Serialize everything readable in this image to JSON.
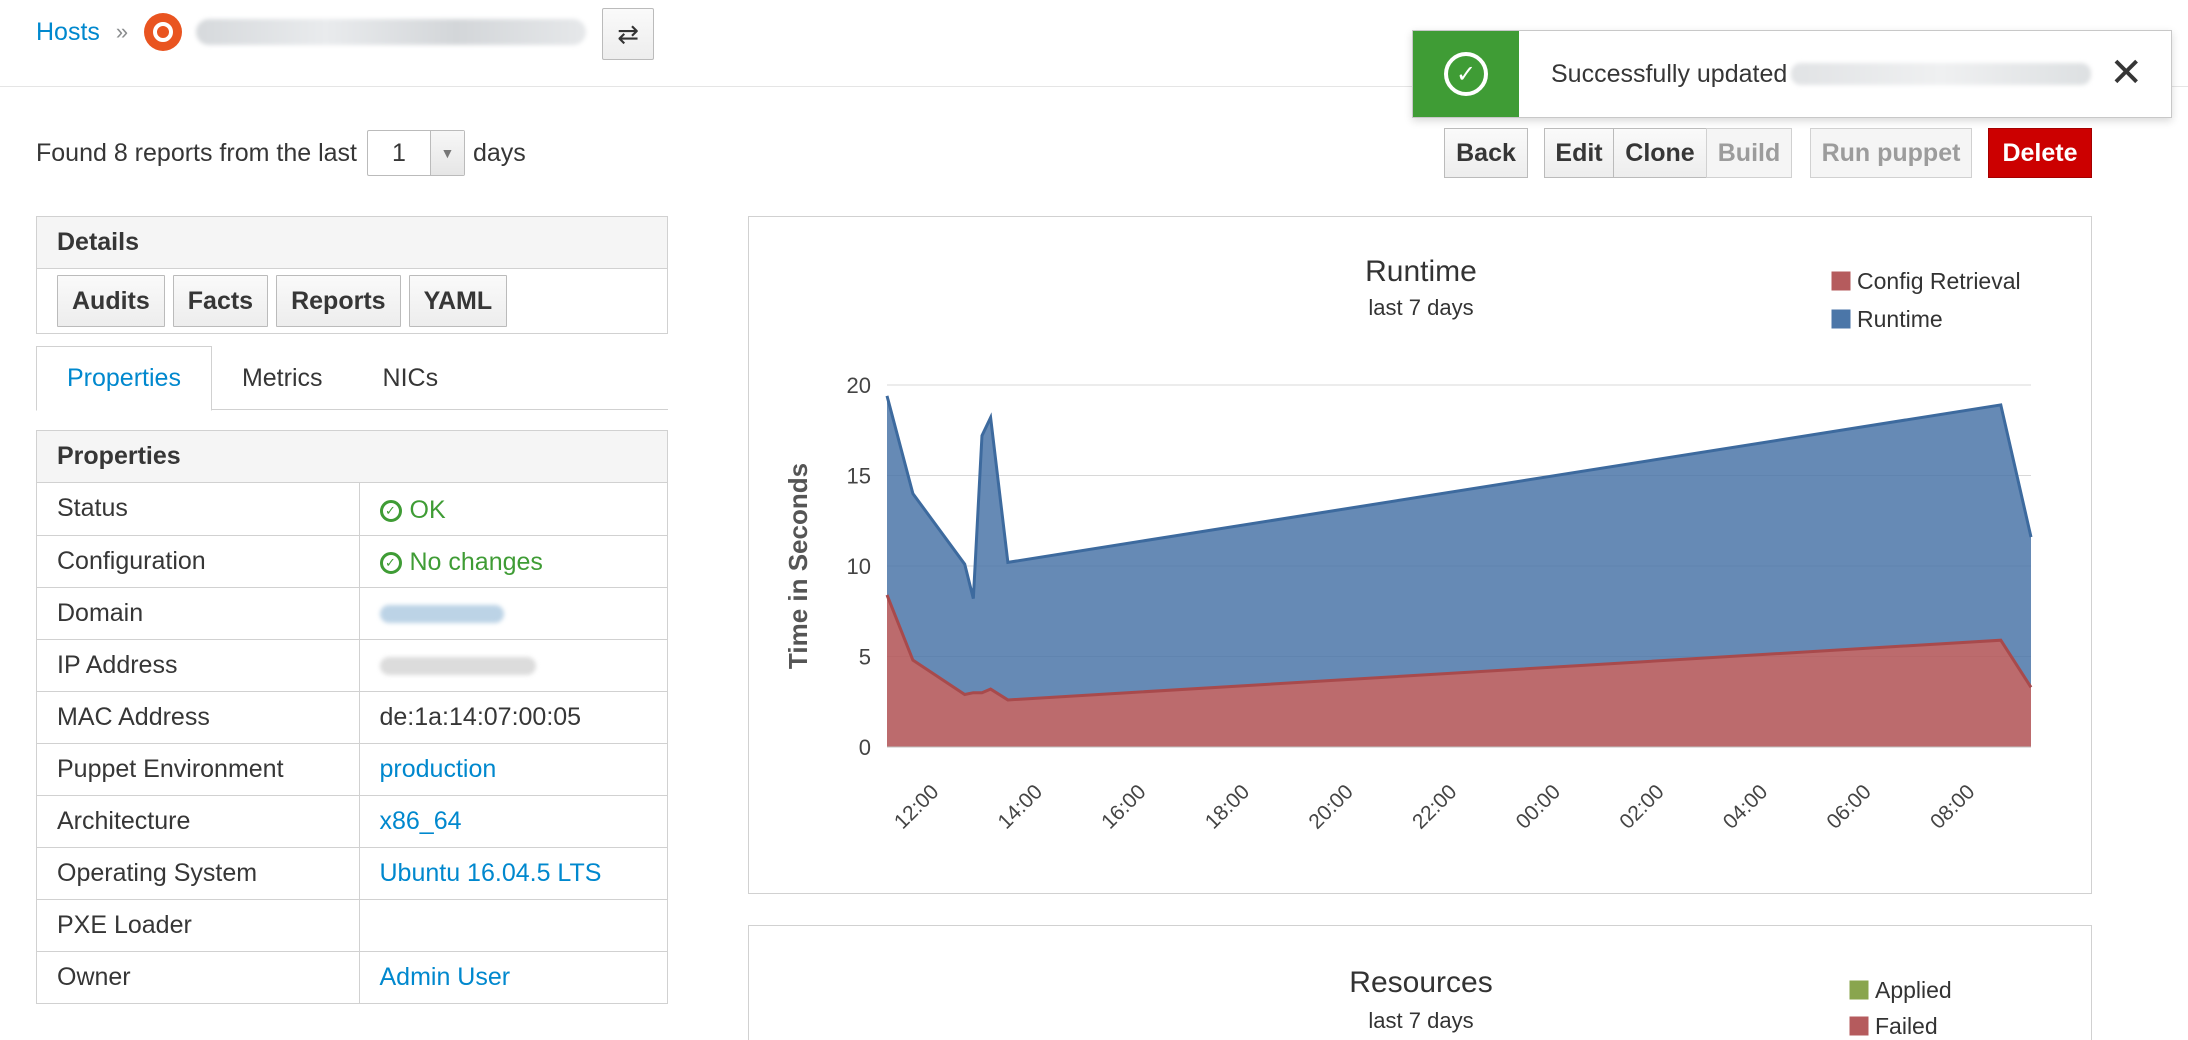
{
  "breadcrumb": {
    "root": "Hosts",
    "separator": "»"
  },
  "report_finder": {
    "prefix": "Found 8 reports from the last",
    "days_value": "1",
    "suffix": "days"
  },
  "toast": {
    "message": "Successfully updated"
  },
  "actions": {
    "back": "Back",
    "edit": "Edit",
    "clone": "Clone",
    "build": "Build",
    "run_puppet": "Run puppet",
    "delete": "Delete"
  },
  "details": {
    "title": "Details",
    "buttons": [
      "Audits",
      "Facts",
      "Reports",
      "YAML"
    ]
  },
  "tabs": [
    "Properties",
    "Metrics",
    "NICs"
  ],
  "properties": {
    "title": "Properties",
    "rows": [
      {
        "key": "Status",
        "value": "OK"
      },
      {
        "key": "Configuration",
        "value": "No changes"
      },
      {
        "key": "Domain",
        "value": ""
      },
      {
        "key": "IP Address",
        "value": ""
      },
      {
        "key": "MAC Address",
        "value": "de:1a:14:07:00:05"
      },
      {
        "key": "Puppet Environment",
        "value": "production"
      },
      {
        "key": "Architecture",
        "value": "x86_64"
      },
      {
        "key": "Operating System",
        "value": "Ubuntu 16.04.5 LTS"
      },
      {
        "key": "PXE Loader",
        "value": ""
      },
      {
        "key": "Owner",
        "value": "Admin User"
      }
    ]
  },
  "colors": {
    "link": "#0088ce",
    "success": "#3f9c35",
    "danger": "#cc0000",
    "config_retrieval": "#b55b5d",
    "runtime": "#4b76a8",
    "applied": "#89a54e"
  },
  "chart_data": [
    {
      "type": "area",
      "title": "Runtime",
      "subtitle": "last 7 days",
      "ylabel": "Time in Seconds",
      "xlabel": "",
      "ylim": [
        0,
        20
      ],
      "yticks": [
        0,
        5,
        10,
        15,
        20
      ],
      "xticks": [
        "12:00",
        "14:00",
        "16:00",
        "18:00",
        "20:00",
        "22:00",
        "00:00",
        "02:00",
        "04:00",
        "06:00",
        "08:00"
      ],
      "legend": "top-right",
      "grid": true,
      "x": [
        "11:15",
        "11:45",
        "12:45",
        "12:55",
        "13:05",
        "13:15",
        "13:35",
        "08:45",
        "09:20"
      ],
      "series": [
        {
          "name": "Config Retrieval",
          "values": [
            8.4,
            4.8,
            2.9,
            3.0,
            3.0,
            3.2,
            2.6,
            5.9,
            3.3
          ]
        },
        {
          "name": "Runtime",
          "values": [
            11.0,
            9.2,
            7.2,
            5.2,
            14.2,
            15.0,
            7.6,
            13.0,
            8.3
          ]
        }
      ]
    },
    {
      "type": "area",
      "title": "Resources",
      "subtitle": "last 7 days",
      "legend": "top-right",
      "series": [
        {
          "name": "Applied",
          "values": []
        },
        {
          "name": "Failed",
          "values": []
        }
      ]
    }
  ]
}
